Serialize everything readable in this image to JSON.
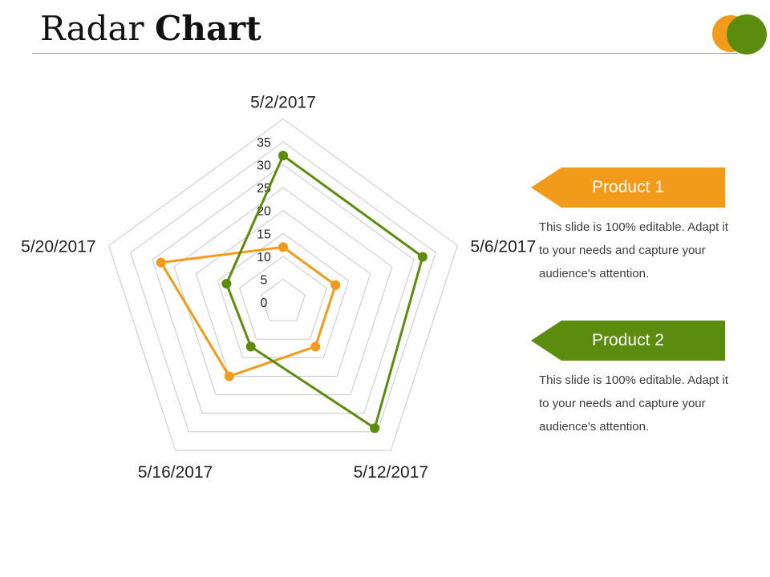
{
  "page": {
    "title_regular": "Radar",
    "title_bold": "Chart"
  },
  "colors": {
    "orange": "#f29b1a",
    "green": "#5c8c0e",
    "grid": "#c8c8c8",
    "text": "#222222"
  },
  "legend": [
    {
      "label": "Product 1",
      "description": "This slide is 100% editable. Adapt it to your needs and capture your audience's attention.",
      "color": "#f29b1a"
    },
    {
      "label": "Product 2",
      "description": "This slide is 100% editable. Adapt it to your needs and capture your audience's attention.",
      "color": "#5c8c0e"
    }
  ],
  "chart_data": {
    "type": "radar",
    "categories": [
      "5/2/2017",
      "5/6/2017",
      "5/12/2017",
      "5/16/2017",
      "5/20/2017"
    ],
    "radial_range": [
      0,
      35
    ],
    "radial_ticks": [
      0,
      5,
      10,
      15,
      20,
      25,
      30,
      35
    ],
    "grid": true,
    "series": [
      {
        "name": "Product 1",
        "color": "#f29b1a",
        "values": [
          12,
          12,
          12,
          20,
          28
        ]
      },
      {
        "name": "Product 2",
        "color": "#5c8c0e",
        "values": [
          32,
          32,
          34,
          12,
          13
        ]
      }
    ]
  }
}
